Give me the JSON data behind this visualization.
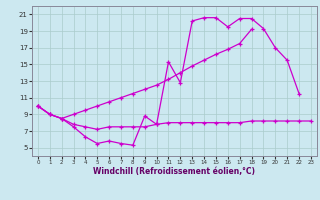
{
  "xlabel": "Windchill (Refroidissement éolien,°C)",
  "background_color": "#cce8f0",
  "grid_color": "#aacccc",
  "line_color": "#cc00cc",
  "xlim": [
    -0.5,
    23.5
  ],
  "ylim": [
    4,
    22
  ],
  "yticks": [
    5,
    7,
    9,
    11,
    13,
    15,
    17,
    19,
    21
  ],
  "xticks": [
    0,
    1,
    2,
    3,
    4,
    5,
    6,
    7,
    8,
    9,
    10,
    11,
    12,
    13,
    14,
    15,
    16,
    17,
    18,
    19,
    20,
    21,
    22,
    23
  ],
  "line1_y": [
    10.0,
    9.0,
    8.5,
    7.5,
    6.3,
    5.5,
    5.8,
    5.5,
    5.3,
    8.8,
    7.8,
    15.3,
    12.8,
    20.2,
    20.6,
    20.6,
    19.5,
    20.5,
    20.5,
    19.3,
    17.0,
    15.5,
    11.5,
    null
  ],
  "line2_y": [
    10.0,
    9.0,
    8.5,
    9.0,
    9.5,
    10.0,
    10.5,
    11.0,
    11.5,
    12.0,
    12.5,
    13.2,
    14.0,
    14.8,
    15.5,
    16.2,
    16.8,
    17.5,
    19.2,
    null,
    null,
    null,
    null,
    null
  ],
  "line3_y": [
    10.0,
    9.0,
    8.5,
    7.8,
    7.5,
    7.2,
    7.5,
    7.5,
    7.5,
    7.5,
    7.8,
    8.0,
    8.0,
    8.0,
    8.0,
    8.0,
    8.0,
    8.0,
    8.2,
    8.2,
    8.2,
    8.2,
    8.2,
    8.2
  ],
  "xlabel_color": "#660066",
  "xlabel_fontsize": 5.5,
  "tick_fontsize": 5.0
}
